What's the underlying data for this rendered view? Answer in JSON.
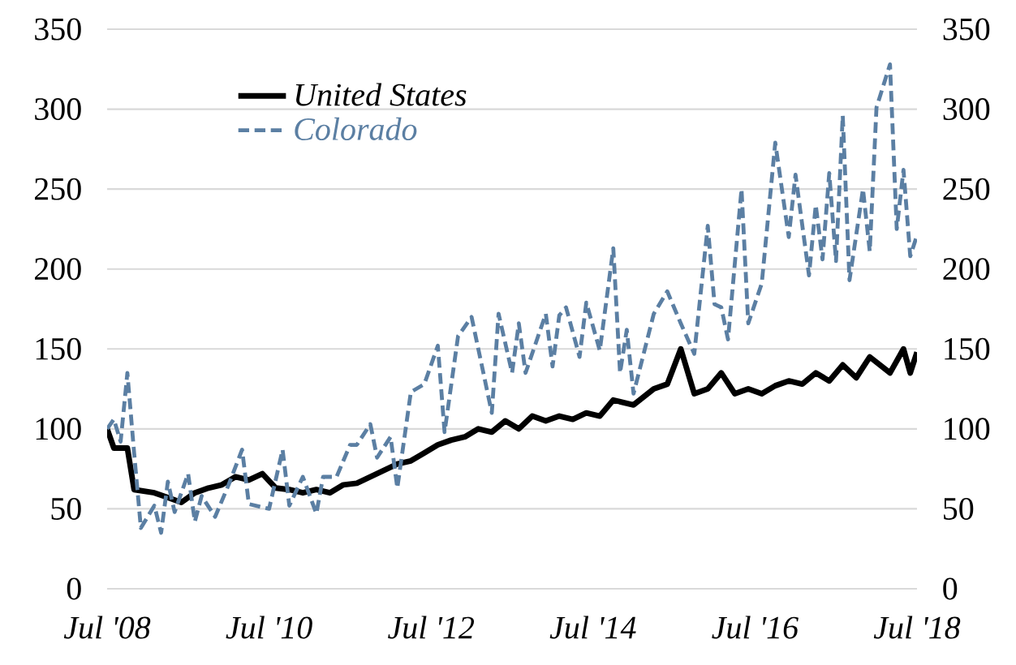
{
  "chart_data": {
    "type": "line",
    "series": [
      {
        "name": "United States",
        "color": "#000000",
        "line_style": "solid",
        "x": [
          "2008-07",
          "2008-08",
          "2008-10",
          "2008-11",
          "2009-02",
          "2009-04",
          "2009-06",
          "2009-08",
          "2009-10",
          "2009-12",
          "2010-02",
          "2010-04",
          "2010-06",
          "2010-08",
          "2010-10",
          "2010-12",
          "2011-02",
          "2011-04",
          "2011-06",
          "2011-08",
          "2011-10",
          "2011-12",
          "2012-02",
          "2012-04",
          "2012-06",
          "2012-08",
          "2012-10",
          "2012-12",
          "2013-02",
          "2013-04",
          "2013-06",
          "2013-08",
          "2013-10",
          "2013-12",
          "2014-02",
          "2014-04",
          "2014-06",
          "2014-08",
          "2014-10",
          "2015-01",
          "2015-04",
          "2015-06",
          "2015-08",
          "2015-10",
          "2015-12",
          "2016-02",
          "2016-04",
          "2016-06",
          "2016-08",
          "2016-10",
          "2016-12",
          "2017-02",
          "2017-04",
          "2017-06",
          "2017-08",
          "2017-10",
          "2017-12",
          "2018-03",
          "2018-05",
          "2018-06",
          "2018-07"
        ],
        "values": [
          100,
          88,
          88,
          62,
          60,
          57,
          54,
          60,
          63,
          65,
          70,
          68,
          72,
          63,
          62,
          60,
          62,
          60,
          65,
          66,
          70,
          74,
          78,
          80,
          85,
          90,
          93,
          95,
          100,
          98,
          105,
          100,
          108,
          105,
          108,
          106,
          110,
          108,
          118,
          115,
          125,
          128,
          150,
          122,
          125,
          135,
          122,
          125,
          122,
          127,
          130,
          128,
          135,
          130,
          140,
          132,
          145,
          135,
          150,
          135,
          148
        ]
      },
      {
        "name": "Colorado",
        "color": "#5b7fa3",
        "line_style": "dashed",
        "x": [
          "2008-07",
          "2008-08",
          "2008-09",
          "2008-10",
          "2008-11",
          "2008-12",
          "2009-02",
          "2009-03",
          "2009-04",
          "2009-05",
          "2009-07",
          "2009-08",
          "2009-09",
          "2009-11",
          "2010-01",
          "2010-03",
          "2010-04",
          "2010-07",
          "2010-09",
          "2010-10",
          "2010-12",
          "2011-02",
          "2011-03",
          "2011-05",
          "2011-07",
          "2011-08",
          "2011-10",
          "2011-11",
          "2012-01",
          "2012-02",
          "2012-04",
          "2012-06",
          "2012-08",
          "2012-09",
          "2012-11",
          "2013-01",
          "2013-04",
          "2013-05",
          "2013-07",
          "2013-08",
          "2013-09",
          "2013-12",
          "2014-01",
          "2014-02",
          "2014-03",
          "2014-05",
          "2014-06",
          "2014-08",
          "2014-10",
          "2014-11",
          "2014-12",
          "2015-01",
          "2015-04",
          "2015-06",
          "2015-08",
          "2015-10",
          "2015-12",
          "2016-01",
          "2016-02",
          "2016-03",
          "2016-05",
          "2016-06",
          "2016-08",
          "2016-10",
          "2016-12",
          "2017-01",
          "2017-03",
          "2017-04",
          "2017-05",
          "2017-06",
          "2017-07",
          "2017-08",
          "2017-09",
          "2017-11",
          "2017-12",
          "2018-01",
          "2018-03",
          "2018-04",
          "2018-05",
          "2018-06",
          "2018-07"
        ],
        "values": [
          100,
          106,
          92,
          135,
          85,
          38,
          52,
          35,
          67,
          48,
          72,
          42,
          58,
          45,
          65,
          87,
          53,
          50,
          87,
          52,
          70,
          47,
          70,
          70,
          90,
          90,
          103,
          82,
          95,
          63,
          123,
          128,
          152,
          98,
          158,
          170,
          110,
          172,
          135,
          166,
          135,
          172,
          139,
          171,
          176,
          145,
          179,
          149,
          213,
          135,
          162,
          122,
          172,
          186,
          166,
          147,
          227,
          178,
          176,
          156,
          250,
          166,
          191,
          279,
          220,
          259,
          196,
          240,
          206,
          260,
          205,
          296,
          193,
          250,
          211,
          301,
          328,
          225,
          262,
          208,
          221
        ]
      }
    ],
    "xlim": [
      "2008-07",
      "2018-07"
    ],
    "xticks": [
      {
        "value": "2008-07",
        "label": "Jul '08"
      },
      {
        "value": "2010-07",
        "label": "Jul '10"
      },
      {
        "value": "2012-07",
        "label": "Jul '12"
      },
      {
        "value": "2014-07",
        "label": "Jul '14"
      },
      {
        "value": "2016-07",
        "label": "Jul '16"
      },
      {
        "value": "2018-07",
        "label": "Jul '18"
      }
    ],
    "ylim": [
      0,
      350
    ],
    "yticks": [
      0,
      50,
      100,
      150,
      200,
      250,
      300,
      350
    ],
    "y2lim": [
      0,
      350
    ],
    "y2ticks": [
      0,
      50,
      100,
      150,
      200,
      250,
      300,
      350
    ],
    "grid": "y",
    "legend": "top left"
  }
}
